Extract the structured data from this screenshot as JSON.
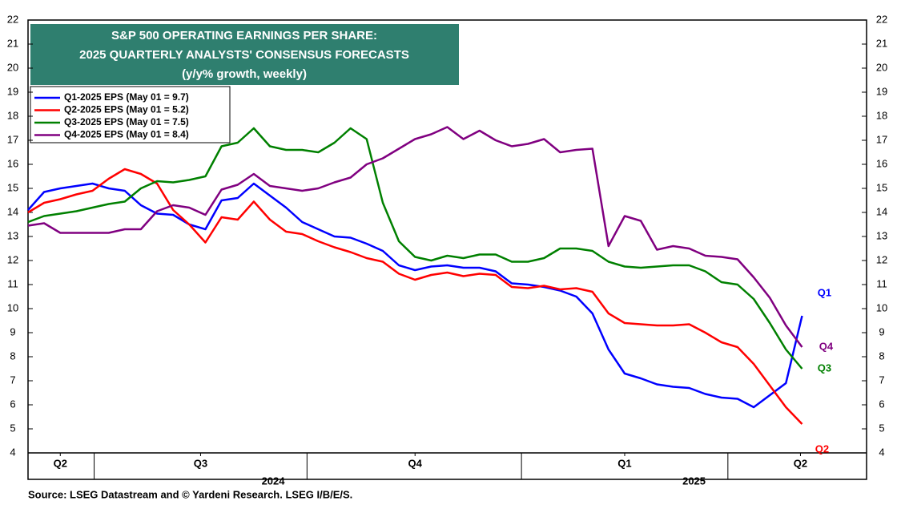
{
  "chart_data": {
    "type": "line",
    "title": [
      "S&P 500 OPERATING EARNINGS PER SHARE:",
      "2025 QUARTERLY ANALYSTS' CONSENSUS FORECASTS"
    ],
    "subtitle": "(y/y% growth, weekly)",
    "source": "Source: LSEG Datastream and © Yardeni Research. LSEG I/B/E/S.",
    "x": [
      0,
      1,
      2,
      3,
      4,
      5,
      6,
      7,
      8,
      9,
      10,
      11,
      12,
      13,
      14,
      15,
      16,
      17,
      18,
      19,
      20,
      21,
      22,
      23,
      24,
      25,
      26,
      27,
      28,
      29,
      30,
      31,
      32,
      33,
      34,
      35,
      36,
      37,
      38,
      39,
      40,
      41,
      42,
      43,
      44,
      45,
      46,
      47,
      48
    ],
    "xlim": [
      0,
      52
    ],
    "xticks": [
      {
        "value": 2,
        "label": "Q2"
      },
      {
        "value": 10.7,
        "label": "Q3"
      },
      {
        "value": 24,
        "label": "Q4"
      },
      {
        "value": 37,
        "label": "Q1"
      },
      {
        "value": 47.9,
        "label": "Q2"
      }
    ],
    "x_separators": [
      4.1,
      17.3,
      30.6,
      43.4
    ],
    "year_labels": [
      {
        "value": 15.2,
        "label": "2024"
      },
      {
        "value": 41.3,
        "label": "2025"
      }
    ],
    "ylim": [
      4,
      22
    ],
    "yticks": [
      4,
      5,
      6,
      7,
      8,
      9,
      10,
      11,
      12,
      13,
      14,
      15,
      16,
      17,
      18,
      19,
      20,
      21,
      22
    ],
    "y2lim": [
      4,
      22
    ],
    "y2ticks": [
      4,
      5,
      6,
      7,
      8,
      9,
      10,
      11,
      12,
      13,
      14,
      15,
      16,
      17,
      18,
      19,
      20,
      21,
      22
    ],
    "series": [
      {
        "name": "Q1-2025 EPS (May 01 = 9.7)",
        "color": "#0000ff",
        "end_label": "Q1",
        "values": [
          14.1,
          14.85,
          15.0,
          15.1,
          15.2,
          15.0,
          14.9,
          14.3,
          13.95,
          13.9,
          13.5,
          13.3,
          14.5,
          14.6,
          15.2,
          14.7,
          14.2,
          13.6,
          13.3,
          13.0,
          12.95,
          12.7,
          12.4,
          11.8,
          11.6,
          11.75,
          11.8,
          11.7,
          11.7,
          11.55,
          11.05,
          11.0,
          10.9,
          10.75,
          10.5,
          9.8,
          8.3,
          7.3,
          7.1,
          6.85,
          6.75,
          6.7,
          6.45,
          6.3,
          6.25,
          5.9,
          6.4,
          6.9,
          9.7
        ]
      },
      {
        "name": "Q2-2025 EPS (May 01 = 5.2)",
        "color": "#ff0000",
        "end_label": "Q2",
        "values": [
          14.0,
          14.4,
          14.55,
          14.75,
          14.9,
          15.4,
          15.8,
          15.6,
          15.2,
          14.1,
          13.5,
          12.75,
          13.8,
          13.7,
          14.45,
          13.7,
          13.2,
          13.1,
          12.8,
          12.55,
          12.35,
          12.1,
          11.95,
          11.45,
          11.2,
          11.4,
          11.5,
          11.35,
          11.45,
          11.4,
          10.9,
          10.85,
          10.95,
          10.8,
          10.85,
          10.7,
          9.8,
          9.4,
          9.35,
          9.3,
          9.3,
          9.35,
          9.0,
          8.6,
          8.4,
          7.7,
          6.8,
          5.9,
          5.2
        ]
      },
      {
        "name": "Q3-2025 EPS (May 01 = 7.5)",
        "color": "#008000",
        "end_label": "Q3",
        "values": [
          13.6,
          13.85,
          13.95,
          14.05,
          14.2,
          14.35,
          14.45,
          15.0,
          15.3,
          15.25,
          15.35,
          15.5,
          16.75,
          16.9,
          17.5,
          16.75,
          16.6,
          16.6,
          16.5,
          16.9,
          17.5,
          17.05,
          14.4,
          12.8,
          12.15,
          12.0,
          12.2,
          12.1,
          12.25,
          12.25,
          11.95,
          11.95,
          12.1,
          12.5,
          12.5,
          12.4,
          11.95,
          11.75,
          11.7,
          11.75,
          11.8,
          11.8,
          11.55,
          11.1,
          11.0,
          10.4,
          9.4,
          8.3,
          7.5
        ]
      },
      {
        "name": "Q4-2025 EPS (May 01 = 8.4)",
        "color": "#800080",
        "end_label": "Q4",
        "values": [
          13.45,
          13.55,
          13.15,
          13.15,
          13.15,
          13.15,
          13.3,
          13.3,
          14.05,
          14.3,
          14.2,
          13.9,
          14.95,
          15.15,
          15.6,
          15.1,
          15.0,
          14.9,
          15.0,
          15.25,
          15.45,
          16.0,
          16.25,
          16.65,
          17.05,
          17.25,
          17.55,
          17.05,
          17.4,
          17.0,
          16.75,
          16.85,
          17.05,
          16.5,
          16.6,
          16.65,
          12.6,
          13.85,
          13.65,
          12.45,
          12.6,
          12.5,
          12.2,
          12.15,
          12.05,
          11.3,
          10.45,
          9.3,
          8.4
        ]
      }
    ]
  }
}
